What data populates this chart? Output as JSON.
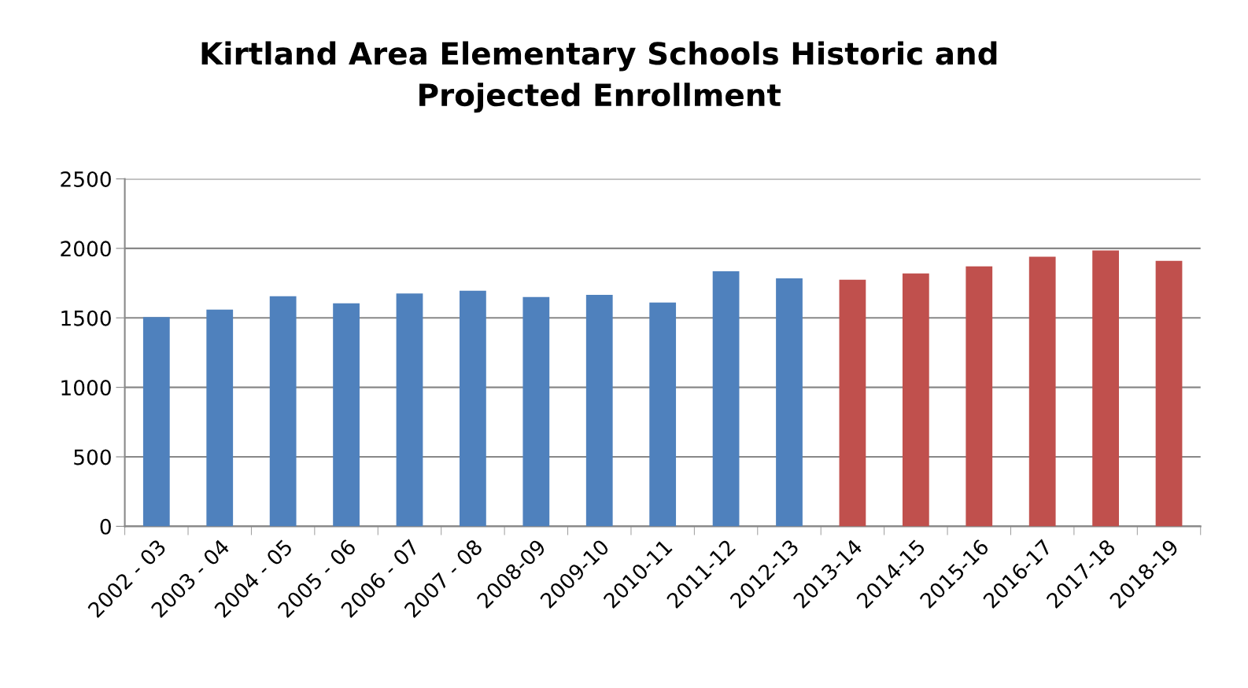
{
  "chart_data": {
    "type": "bar",
    "title": "Kirtland Area Elementary Schools Historic and\nProjected Enrollment",
    "categories": [
      "2002 - 03",
      "2003 - 04",
      "2004 - 05",
      "2005 - 06",
      "2006 - 07",
      "2007 - 08",
      "2008-09",
      "2009-10",
      "2010-11",
      "2011-12",
      "2012-13",
      "2013-14",
      "2014-15",
      "2015-16",
      "2016-17",
      "2017-18",
      "2018-19"
    ],
    "values": [
      1505,
      1560,
      1655,
      1605,
      1675,
      1695,
      1650,
      1665,
      1610,
      1835,
      1785,
      1775,
      1820,
      1870,
      1940,
      1985,
      1910
    ],
    "colors": [
      "#4f81bd",
      "#4f81bd",
      "#4f81bd",
      "#4f81bd",
      "#4f81bd",
      "#4f81bd",
      "#4f81bd",
      "#4f81bd",
      "#4f81bd",
      "#4f81bd",
      "#4f81bd",
      "#c0504d",
      "#c0504d",
      "#c0504d",
      "#c0504d",
      "#c0504d",
      "#c0504d"
    ],
    "ylim": [
      0,
      2500
    ],
    "yticks": [
      0,
      500,
      1000,
      1500,
      2000,
      2500
    ],
    "grid": "y"
  }
}
